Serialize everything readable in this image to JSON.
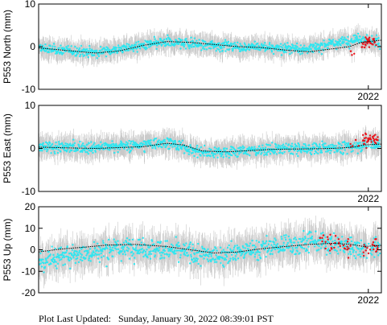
{
  "footer": {
    "label": "Plot Last Updated:",
    "value": "Sunday, January 30, 2022 08:39:01 PST"
  },
  "colors": {
    "cyan": "#2ee6f0",
    "red": "#e8141c",
    "model": "#000000",
    "errorbar": "#c8c8c8"
  },
  "chart_data": [
    {
      "type": "scatter",
      "ylabel": "P553 North (mm)",
      "ylim": [
        -10,
        10
      ],
      "yticks": [
        -10,
        0,
        10
      ],
      "xlim": [
        2008.1,
        2022.55
      ],
      "xtick_labels": [
        {
          "x": 2022,
          "label": "2022"
        }
      ],
      "series": [
        {
          "color": "cyan",
          "kind": "daily",
          "spread": 1.0,
          "errbar": 2.0,
          "mean": [
            [
              2008.1,
              -0.5
            ],
            [
              2010.5,
              -1.3
            ],
            [
              2013.5,
              1.0
            ],
            [
              2016.5,
              0.0
            ],
            [
              2019.5,
              -0.5
            ],
            [
              2021.7,
              2.0
            ],
            [
              2022.5,
              1.0
            ]
          ]
        },
        {
          "color": "red",
          "kind": "recent",
          "spread": 1.0,
          "errbar": 1.5,
          "mean": [
            [
              2021.25,
              -1.5
            ],
            [
              2021.6,
              -1.0
            ],
            [
              2021.9,
              1.0
            ],
            [
              2022.15,
              1.2
            ],
            [
              2022.35,
              0.8
            ]
          ]
        }
      ],
      "model": [
        [
          2008.1,
          -0.3
        ],
        [
          2009.5,
          -1.0
        ],
        [
          2010.5,
          -1.5
        ],
        [
          2011.5,
          -1.0
        ],
        [
          2012.5,
          0.3
        ],
        [
          2013.5,
          1.2
        ],
        [
          2014.5,
          1.0
        ],
        [
          2015.5,
          0.5
        ],
        [
          2016.5,
          0.0
        ],
        [
          2017.5,
          -0.2
        ],
        [
          2018.5,
          -0.8
        ],
        [
          2019.5,
          -1.2
        ],
        [
          2020.5,
          -0.5
        ],
        [
          2021.2,
          0.0
        ],
        [
          2021.7,
          1.0
        ],
        [
          2022.5,
          1.5
        ]
      ]
    },
    {
      "type": "scatter",
      "ylabel": "P553 East (mm)",
      "ylim": [
        -10,
        10
      ],
      "yticks": [
        -10,
        0,
        10
      ],
      "xlim": [
        2008.1,
        2022.55
      ],
      "xtick_labels": [
        {
          "x": 2022,
          "label": "2022"
        }
      ],
      "series": [
        {
          "color": "cyan",
          "kind": "daily",
          "spread": 1.1,
          "errbar": 2.2,
          "mean": [
            [
              2008.1,
              0.2
            ],
            [
              2010.5,
              0.3
            ],
            [
              2012.5,
              0.8
            ],
            [
              2013.5,
              1.5
            ],
            [
              2015.0,
              -1.0
            ],
            [
              2017.5,
              -0.3
            ],
            [
              2019.5,
              0.0
            ],
            [
              2021.0,
              0.3
            ],
            [
              2022.5,
              1.0
            ]
          ]
        },
        {
          "color": "red",
          "kind": "recent",
          "spread": 1.2,
          "errbar": 1.6,
          "mean": [
            [
              2021.2,
              1.5
            ],
            [
              2021.5,
              1.0
            ],
            [
              2021.9,
              1.8
            ],
            [
              2022.2,
              2.5
            ],
            [
              2022.4,
              2.0
            ]
          ]
        }
      ],
      "model": [
        [
          2008.1,
          0.3
        ],
        [
          2009.5,
          0.1
        ],
        [
          2010.5,
          0.0
        ],
        [
          2011.5,
          0.2
        ],
        [
          2012.5,
          0.4
        ],
        [
          2013.5,
          1.2
        ],
        [
          2014.2,
          0.8
        ],
        [
          2015.0,
          -0.6
        ],
        [
          2016.0,
          -0.8
        ],
        [
          2017.0,
          -0.5
        ],
        [
          2018.0,
          -0.2
        ],
        [
          2019.5,
          -0.1
        ],
        [
          2020.5,
          0.0
        ],
        [
          2021.4,
          0.3
        ],
        [
          2021.8,
          0.8
        ],
        [
          2022.5,
          1.0
        ]
      ]
    },
    {
      "type": "scatter",
      "ylabel": "P553 Up (mm)",
      "ylim": [
        -20,
        20
      ],
      "yticks": [
        -20,
        -10,
        0,
        10,
        20
      ],
      "xlim": [
        2008.1,
        2022.55
      ],
      "xtick_labels": [
        {
          "x": 2022,
          "label": "2022"
        }
      ],
      "series": [
        {
          "color": "cyan",
          "kind": "daily",
          "spread": 4.0,
          "errbar": 6.5,
          "mean": [
            [
              2008.1,
              -6.0
            ],
            [
              2009.0,
              -3.0
            ],
            [
              2010.5,
              -1.0
            ],
            [
              2012.0,
              1.0
            ],
            [
              2013.5,
              0.0
            ],
            [
              2015.5,
              -3.0
            ],
            [
              2017.0,
              0.0
            ],
            [
              2018.5,
              2.0
            ],
            [
              2019.5,
              4.0
            ],
            [
              2020.5,
              2.5
            ],
            [
              2021.5,
              1.0
            ],
            [
              2022.5,
              2.0
            ]
          ]
        },
        {
          "color": "red",
          "kind": "recent",
          "spread": 4.0,
          "errbar": 5.0,
          "mean": [
            [
              2019.9,
              6.0
            ],
            [
              2021.2,
              1.0
            ],
            [
              2021.6,
              -2.0
            ],
            [
              2022.0,
              0.0
            ],
            [
              2022.4,
              3.0
            ]
          ]
        }
      ],
      "model": [
        [
          2008.1,
          -1.0
        ],
        [
          2009.0,
          0.3
        ],
        [
          2010.0,
          1.2
        ],
        [
          2011.0,
          2.2
        ],
        [
          2012.2,
          2.5
        ],
        [
          2013.5,
          1.5
        ],
        [
          2014.5,
          0.0
        ],
        [
          2015.5,
          -1.5
        ],
        [
          2016.5,
          -1.0
        ],
        [
          2017.5,
          0.5
        ],
        [
          2018.5,
          1.5
        ],
        [
          2019.5,
          2.5
        ],
        [
          2020.5,
          3.0
        ],
        [
          2021.3,
          2.5
        ],
        [
          2021.8,
          1.5
        ],
        [
          2022.5,
          2.0
        ]
      ]
    }
  ]
}
